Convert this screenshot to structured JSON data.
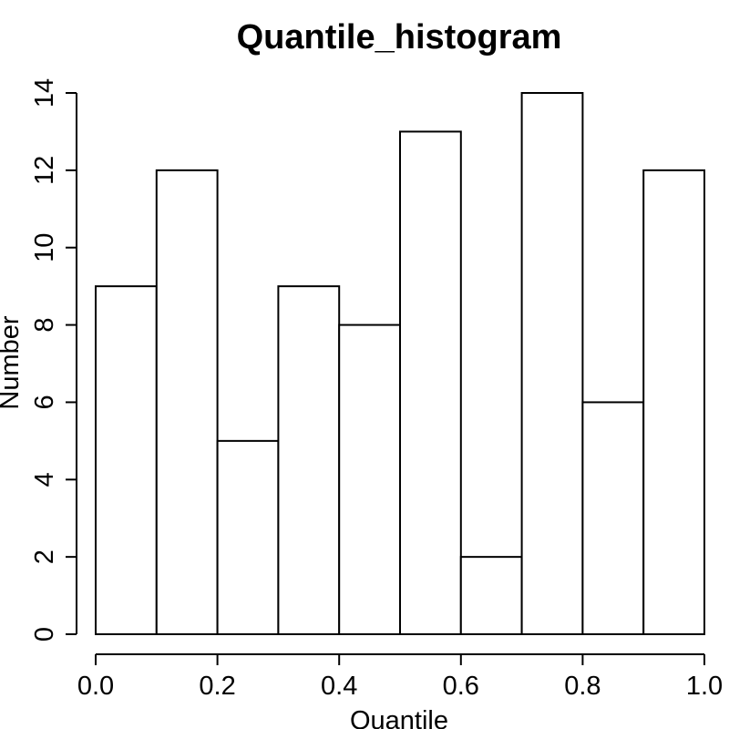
{
  "chart_data": {
    "type": "histogram",
    "title": "Quantile_histogram",
    "xlabel": "Quantile",
    "ylabel": "Number",
    "bin_edges": [
      0.0,
      0.1,
      0.2,
      0.3,
      0.4,
      0.5,
      0.6,
      0.7,
      0.8,
      0.9,
      1.0
    ],
    "values": [
      9,
      12,
      5,
      9,
      8,
      13,
      2,
      14,
      6,
      12
    ],
    "xlim": [
      0.0,
      1.0
    ],
    "ylim": [
      0,
      14
    ],
    "x_ticks": [
      {
        "value": 0.0,
        "label": "0.0"
      },
      {
        "value": 0.2,
        "label": "0.2"
      },
      {
        "value": 0.4,
        "label": "0.4"
      },
      {
        "value": 0.6,
        "label": "0.6"
      },
      {
        "value": 0.8,
        "label": "0.8"
      },
      {
        "value": 1.0,
        "label": "1.0"
      }
    ],
    "y_ticks": [
      {
        "value": 0,
        "label": "0"
      },
      {
        "value": 2,
        "label": "2"
      },
      {
        "value": 4,
        "label": "4"
      },
      {
        "value": 6,
        "label": "6"
      },
      {
        "value": 8,
        "label": "8"
      },
      {
        "value": 10,
        "label": "10"
      },
      {
        "value": 12,
        "label": "12"
      },
      {
        "value": 14,
        "label": "14"
      }
    ],
    "grid": false,
    "bar_fill": "#ffffff",
    "bar_stroke": "#000000"
  }
}
